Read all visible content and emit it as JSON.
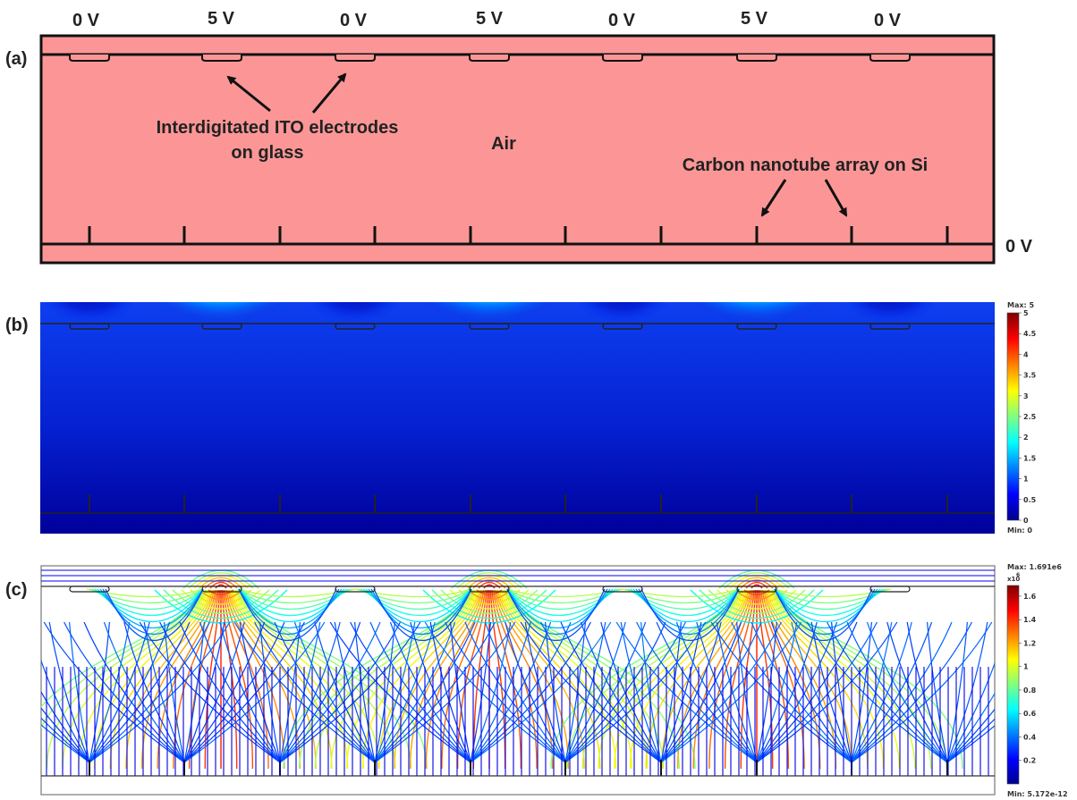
{
  "panel_a": {
    "label": "(a)",
    "electrode_voltages": [
      "0 V",
      "5 V",
      "0 V",
      "5 V",
      "0 V",
      "5 V",
      "0 V"
    ],
    "bottom_voltage": "0 V",
    "annotation_electrodes_line1": "Interdigitated ITO electrodes",
    "annotation_electrodes_line2": "on glass",
    "annotation_air": "Air",
    "annotation_cnt": "Carbon nanotube array on Si",
    "fill_color": "#fc9696"
  },
  "panel_b": {
    "label": "(b)",
    "colorbar": {
      "max_label": "Max: 5",
      "min_label": "Min: 0",
      "ticks": [
        "5",
        "4.5",
        "4",
        "3.5",
        "3",
        "2.5",
        "2",
        "1.5",
        "1",
        "0.5",
        "0"
      ]
    }
  },
  "panel_c": {
    "label": "(c)",
    "colorbar": {
      "max_label": "Max: 1.691e6",
      "min_label": "Min: 5.172e-12",
      "exponent_label": "x10",
      "exponent_power": "6",
      "ticks": [
        "1.6",
        "1.4",
        "1.2",
        "1",
        "0.8",
        "0.6",
        "0.4",
        "0.2"
      ]
    }
  }
}
